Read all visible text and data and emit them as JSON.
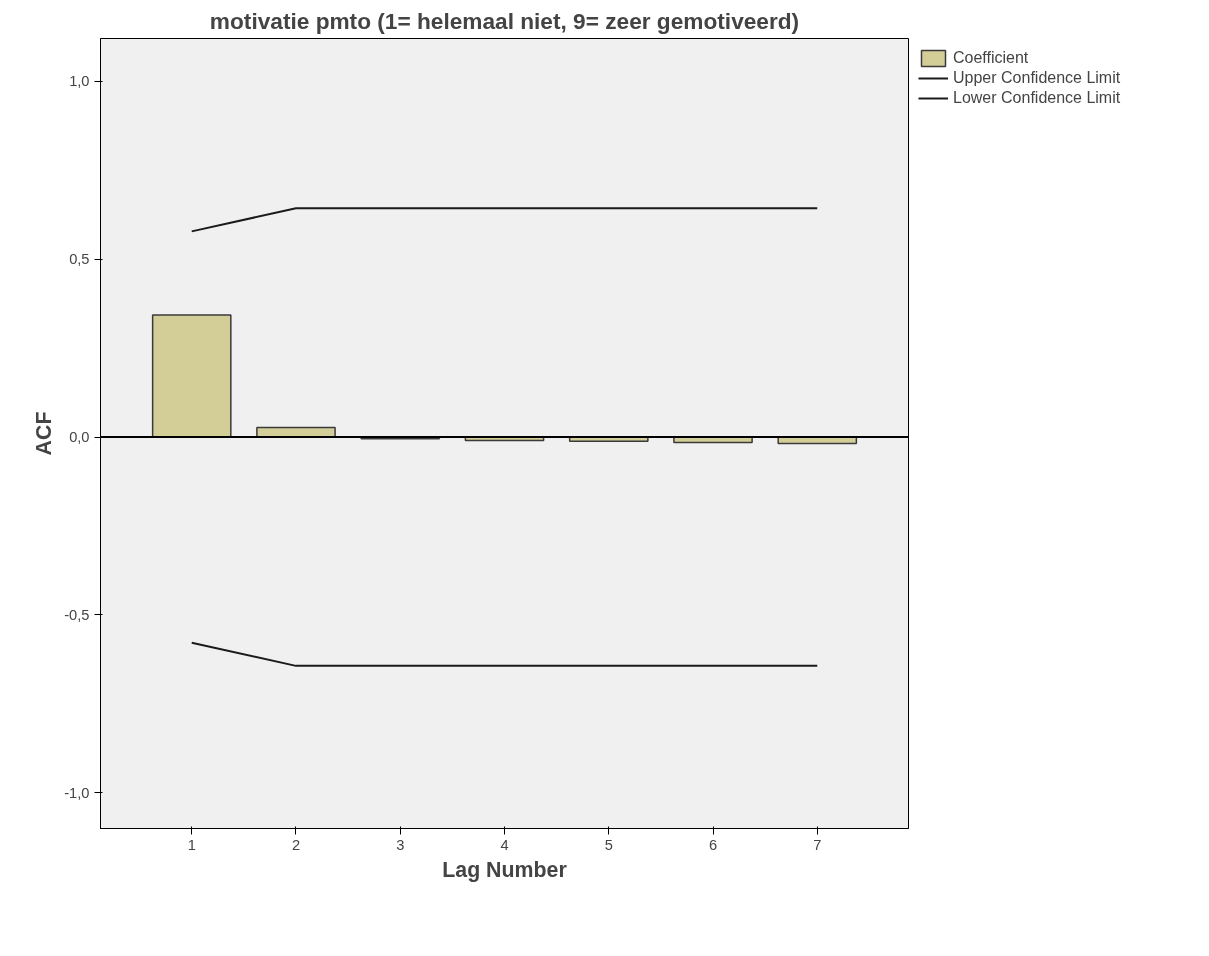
{
  "chart_data": {
    "type": "bar",
    "title": "motivatie pmto (1= helemaal niet, 9= zeer gemotiveerd)",
    "xlabel": "Lag Number",
    "ylabel": "ACF",
    "categories": [
      "1",
      "2",
      "3",
      "4",
      "5",
      "6",
      "7"
    ],
    "series": [
      {
        "name": "Coefficient",
        "color": "#d3ce97",
        "values": [
          0.343,
          0.027,
          -0.005,
          -0.01,
          -0.012,
          -0.015,
          -0.018
        ]
      },
      {
        "name": "Upper Confidence Limit",
        "type": "line",
        "color": "#1a1a1a",
        "values": [
          0.578,
          0.643,
          0.643,
          0.643,
          0.643,
          0.643,
          0.643
        ]
      },
      {
        "name": "Lower Confidence Limit",
        "type": "line",
        "color": "#1a1a1a",
        "values": [
          -0.578,
          -0.643,
          -0.643,
          -0.643,
          -0.643,
          -0.643,
          -0.643
        ]
      }
    ],
    "ylim": [
      -1.1,
      1.12
    ],
    "yticks": [
      {
        "value": -1,
        "label": "-1,0"
      },
      {
        "value": -0.5,
        "label": "-0,5"
      },
      {
        "value": 0,
        "label": "0,0"
      },
      {
        "value": 0.5,
        "label": "0,5"
      },
      {
        "value": 1,
        "label": "1,0"
      }
    ],
    "ref_lines": [
      {
        "axis": "y",
        "value": 0,
        "color": "#000000"
      }
    ],
    "legend": "top right",
    "grid": false
  }
}
